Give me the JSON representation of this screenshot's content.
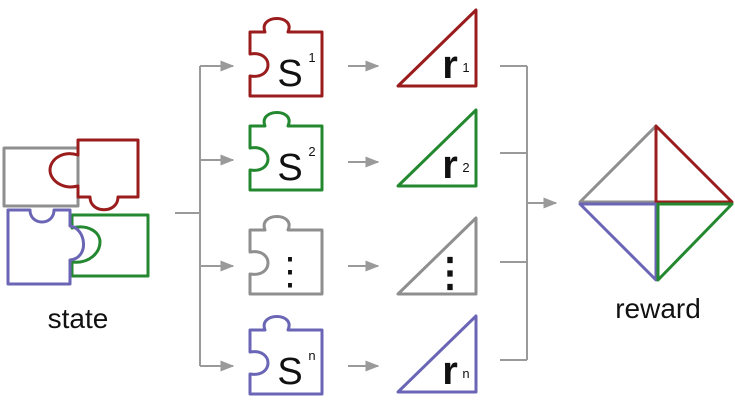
{
  "colors": {
    "red": "#9b1c1c",
    "green": "#23882f",
    "gray": "#8f8f8f",
    "blue": "#6a66b5",
    "arrow": "#9a9a9a",
    "text": "#111111"
  },
  "labels": {
    "state": "state",
    "reward": "reward"
  },
  "pieces": [
    {
      "letter": "S",
      "sup": "1",
      "color": "red"
    },
    {
      "letter": "S",
      "sup": "2",
      "color": "green"
    },
    {
      "letter": "⋮",
      "sup": "",
      "color": "gray"
    },
    {
      "letter": "S",
      "sup": "n",
      "color": "blue"
    }
  ],
  "rewards": [
    {
      "letter": "r",
      "sup": "1",
      "color": "red"
    },
    {
      "letter": "r",
      "sup": "2",
      "color": "green"
    },
    {
      "letter": "⋮",
      "sup": "",
      "color": "gray"
    },
    {
      "letter": "r",
      "sup": "n",
      "color": "blue"
    }
  ],
  "icons": {
    "state": "puzzle-cluster-icon",
    "piece": "puzzle-piece-icon",
    "reward_part": "triangle-icon",
    "reward": "diamond-icon"
  }
}
